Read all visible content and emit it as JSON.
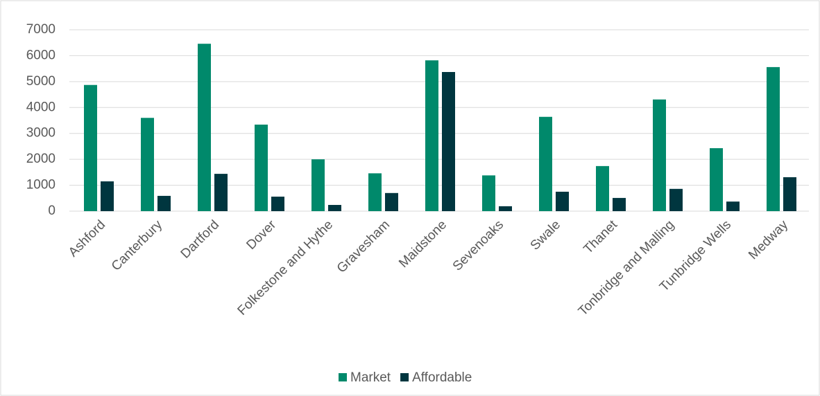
{
  "chart_data": {
    "type": "bar",
    "categories": [
      "Ashford",
      "Canterbury",
      "Dartford",
      "Dover",
      "Folkestone and Hythe",
      "Gravesham",
      "Maidstone",
      "Sevenoaks",
      "Swale",
      "Thanet",
      "Tonbridge and Malling",
      "Tunbridge Wells",
      "Medway"
    ],
    "series": [
      {
        "name": "Market",
        "color": "#00896b",
        "values": [
          4870,
          3600,
          6460,
          3340,
          2000,
          1460,
          5820,
          1380,
          3640,
          1740,
          4310,
          2430,
          5560
        ]
      },
      {
        "name": "Affordable",
        "color": "#00363f",
        "values": [
          1150,
          590,
          1440,
          560,
          240,
          700,
          5370,
          190,
          750,
          510,
          860,
          370,
          1310
        ]
      }
    ],
    "ylim": [
      0,
      7000
    ],
    "yticks": [
      0,
      1000,
      2000,
      3000,
      4000,
      5000,
      6000,
      7000
    ],
    "grid": true,
    "legend": "bottom"
  }
}
